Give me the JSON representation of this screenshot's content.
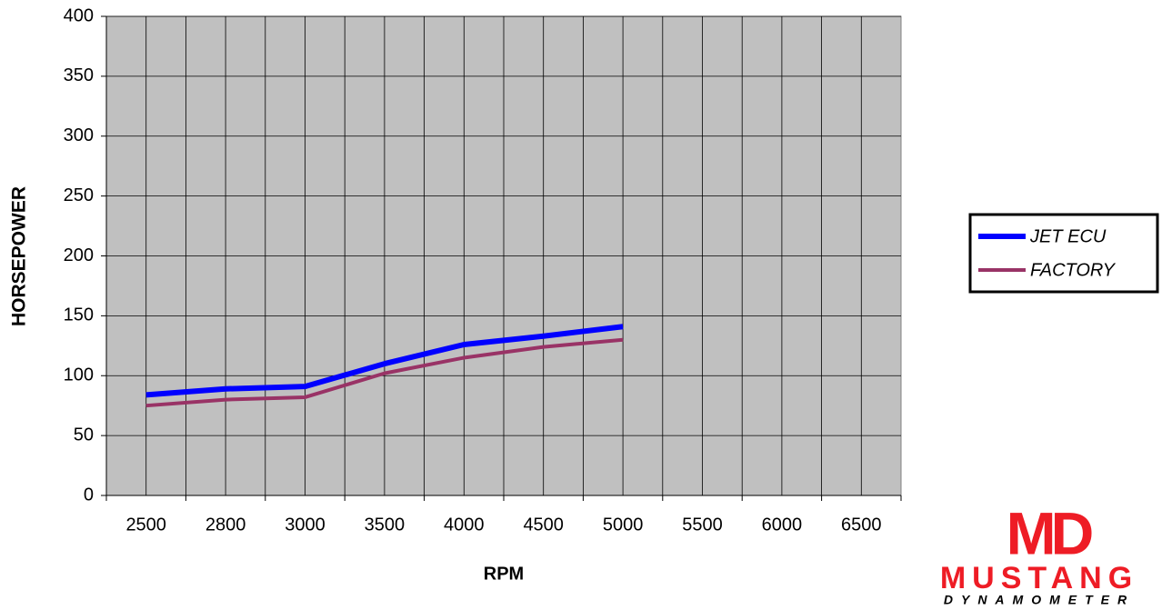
{
  "chart_data": {
    "type": "line",
    "x_label": "RPM",
    "y_label": "HORSEPOWER",
    "categories": [
      "2500",
      "2800",
      "3000",
      "3500",
      "4000",
      "4500",
      "5000",
      "5500",
      "6000",
      "6500"
    ],
    "series": [
      {
        "name": "JET ECU",
        "color": "#0000ff",
        "values": [
          84,
          89,
          91,
          110,
          126,
          133,
          141,
          null,
          null,
          null
        ]
      },
      {
        "name": "FACTORY",
        "color": "#993366",
        "values": [
          75,
          80,
          82,
          102,
          115,
          124,
          130,
          null,
          null,
          null
        ]
      }
    ],
    "ylim": [
      0,
      400
    ],
    "yticks": [
      0,
      50,
      100,
      150,
      200,
      250,
      300,
      350,
      400
    ],
    "grid": true,
    "legend": "right",
    "logo": {
      "mark": "MD",
      "name": "MUSTANG",
      "tagline": "DYNAMOMETER"
    }
  }
}
